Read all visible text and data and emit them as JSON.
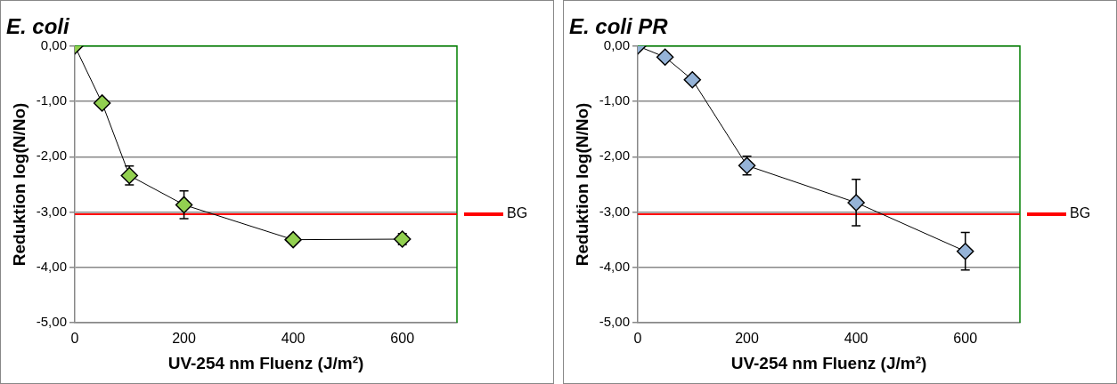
{
  "chart_data": [
    {
      "type": "line",
      "title": "E. coli",
      "xlabel": "UV-254 nm Fluenz (J/m²)",
      "ylabel": "Reduktion log(N/No)",
      "x": [
        0,
        50,
        100,
        200,
        400,
        600
      ],
      "series": [
        {
          "color": "#92d050",
          "values": [
            0,
            -1.03,
            -2.34,
            -2.87,
            -3.5,
            -3.49
          ],
          "errors": [
            null,
            null,
            0.17,
            0.25,
            null,
            0.1
          ]
        }
      ],
      "marker": "diamond",
      "grid": "y",
      "legend": false,
      "xlim": [
        0,
        700
      ],
      "xticks": [
        0,
        200,
        400,
        600
      ],
      "ylim": [
        -5,
        0
      ],
      "yticks": [
        {
          "value": -5,
          "label": "-5,00"
        },
        {
          "value": -4,
          "label": "-4,00"
        },
        {
          "value": -3,
          "label": "-3,00"
        },
        {
          "value": -2,
          "label": "-2,00"
        },
        {
          "value": -1,
          "label": "-1,00"
        },
        {
          "value": 0,
          "label": "0,00"
        }
      ],
      "ref_lines": [
        {
          "axis": "y",
          "value": -3.04,
          "label": "BG",
          "color": "#ff0000"
        }
      ]
    },
    {
      "type": "line",
      "title": "E. coli PR",
      "xlabel": "UV-254 nm Fluenz (J/m²)",
      "ylabel": "Reduktion log(N/No)",
      "x": [
        0,
        50,
        100,
        200,
        400,
        600
      ],
      "series": [
        {
          "color": "#95b3d7",
          "values": [
            0,
            -0.2,
            -0.61,
            -2.16,
            -2.83,
            -3.71
          ],
          "errors": [
            null,
            null,
            null,
            0.17,
            0.42,
            0.34
          ]
        }
      ],
      "marker": "diamond",
      "grid": "y",
      "legend": false,
      "xlim": [
        0,
        700
      ],
      "xticks": [
        0,
        200,
        400,
        600
      ],
      "ylim": [
        -5,
        0
      ],
      "yticks": [
        {
          "value": -5,
          "label": "-5,00"
        },
        {
          "value": -4,
          "label": "-4,00"
        },
        {
          "value": -3,
          "label": "-3,00"
        },
        {
          "value": -2,
          "label": "-2,00"
        },
        {
          "value": -1,
          "label": "-1,00"
        },
        {
          "value": 0,
          "label": "0,00"
        }
      ],
      "ref_lines": [
        {
          "axis": "y",
          "value": -3.04,
          "label": "BG",
          "color": "#ff0000"
        }
      ]
    }
  ]
}
